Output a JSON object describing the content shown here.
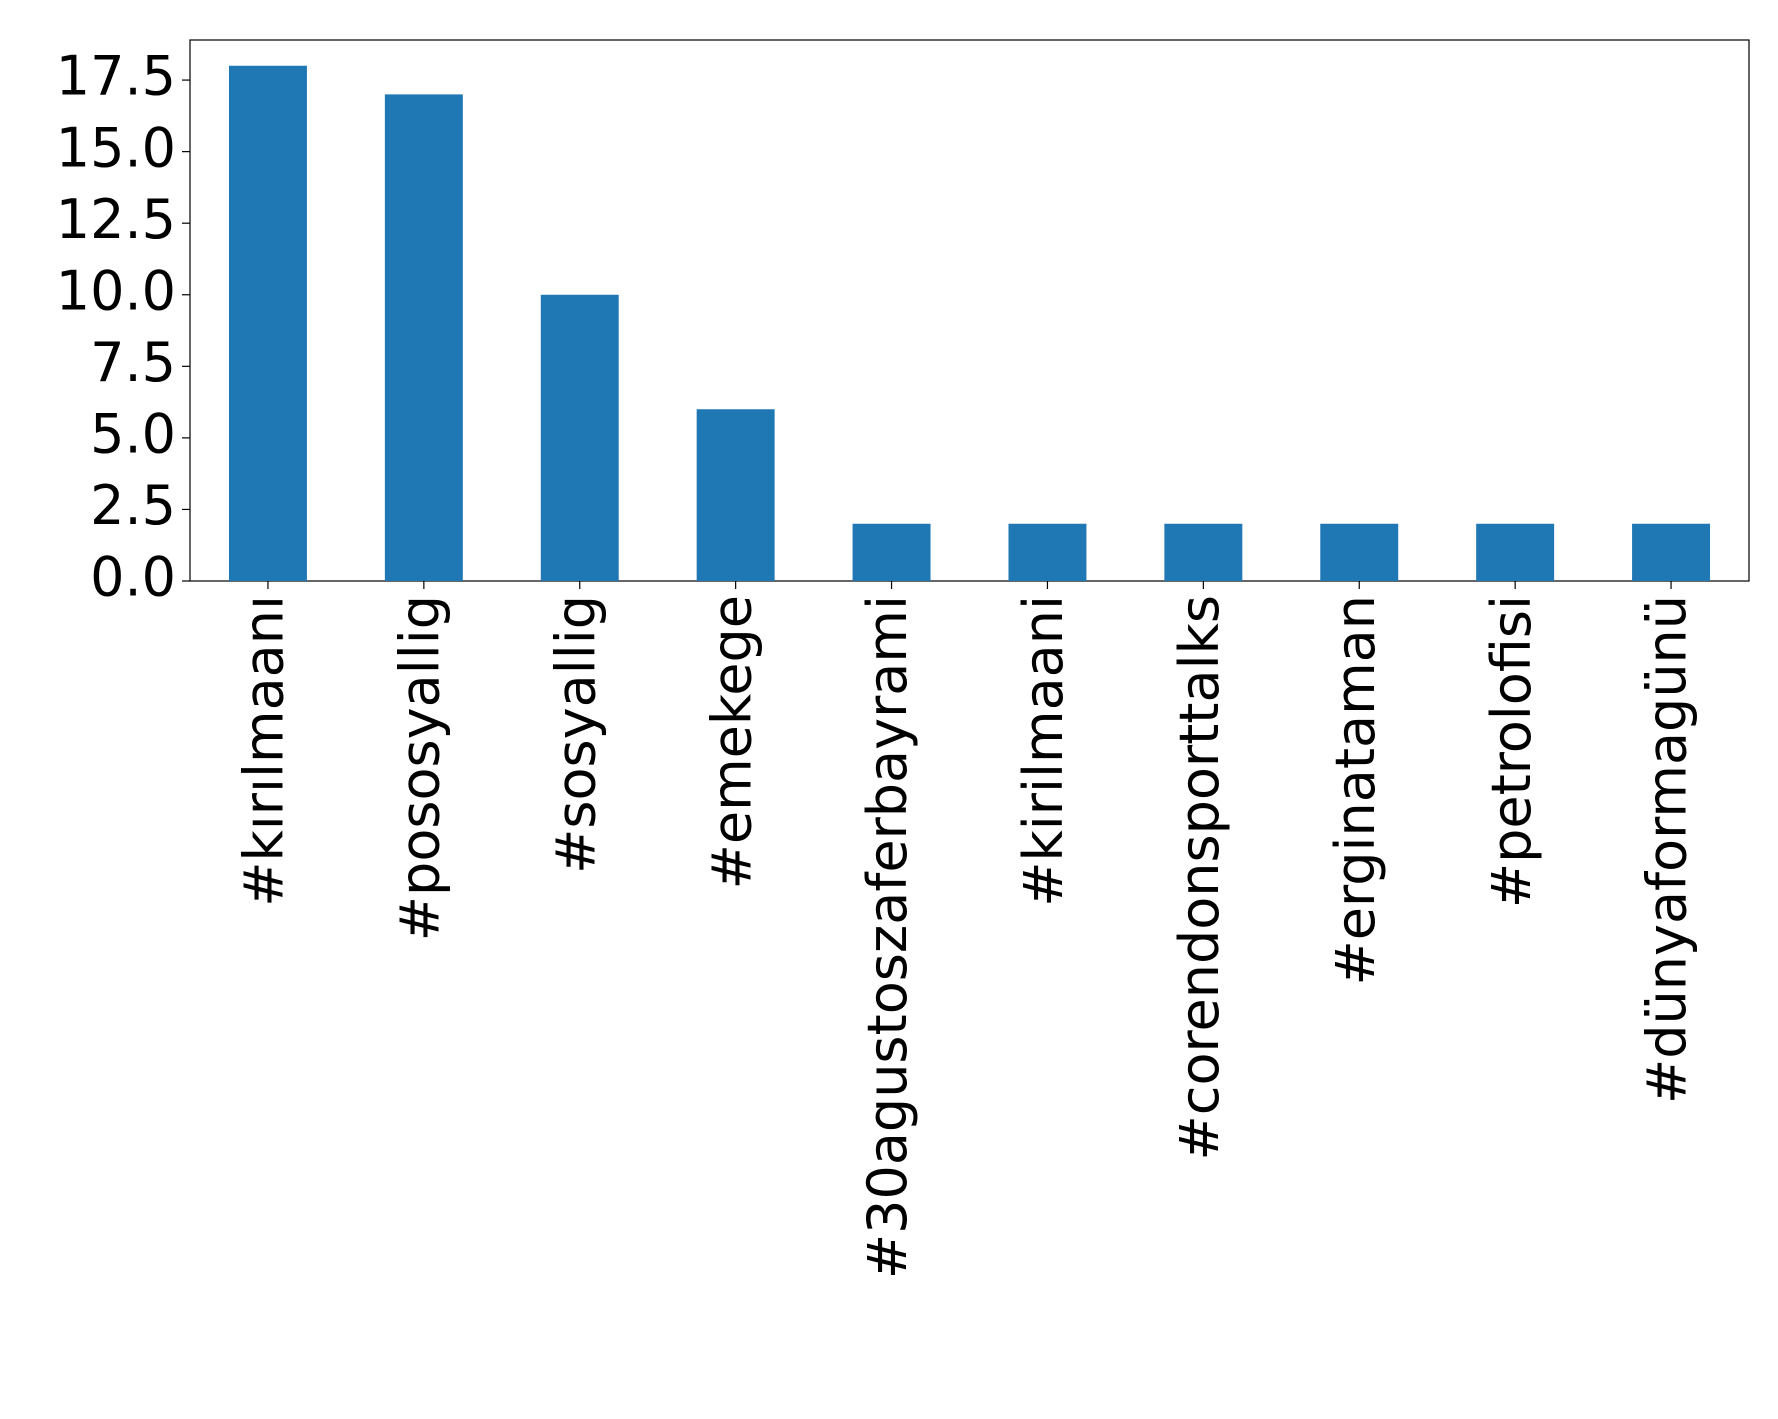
{
  "chart_data": {
    "type": "bar",
    "categories": [
      "#kırılmaanı",
      "#pososyallig",
      "#sosyallig",
      "#emekege",
      "#30agustoszaferbayrami",
      "#kirilmaani",
      "#corendonsporttalks",
      "#erginataman",
      "#petrolofisi",
      "#dünyaformagünü"
    ],
    "values": [
      18,
      17,
      10,
      6,
      2,
      2,
      2,
      2,
      2,
      2
    ],
    "color": "#1f77b4",
    "ylim": [
      0,
      18.9
    ],
    "yticks": [
      {
        "value": 0,
        "label": "0.0"
      },
      2.5,
      {
        "value": 5,
        "label": "5.0"
      },
      7.5,
      {
        "value": 10,
        "label": "10.0"
      },
      12.5,
      {
        "value": 15,
        "label": "15.0"
      },
      17.5
    ],
    "grid": false
  }
}
